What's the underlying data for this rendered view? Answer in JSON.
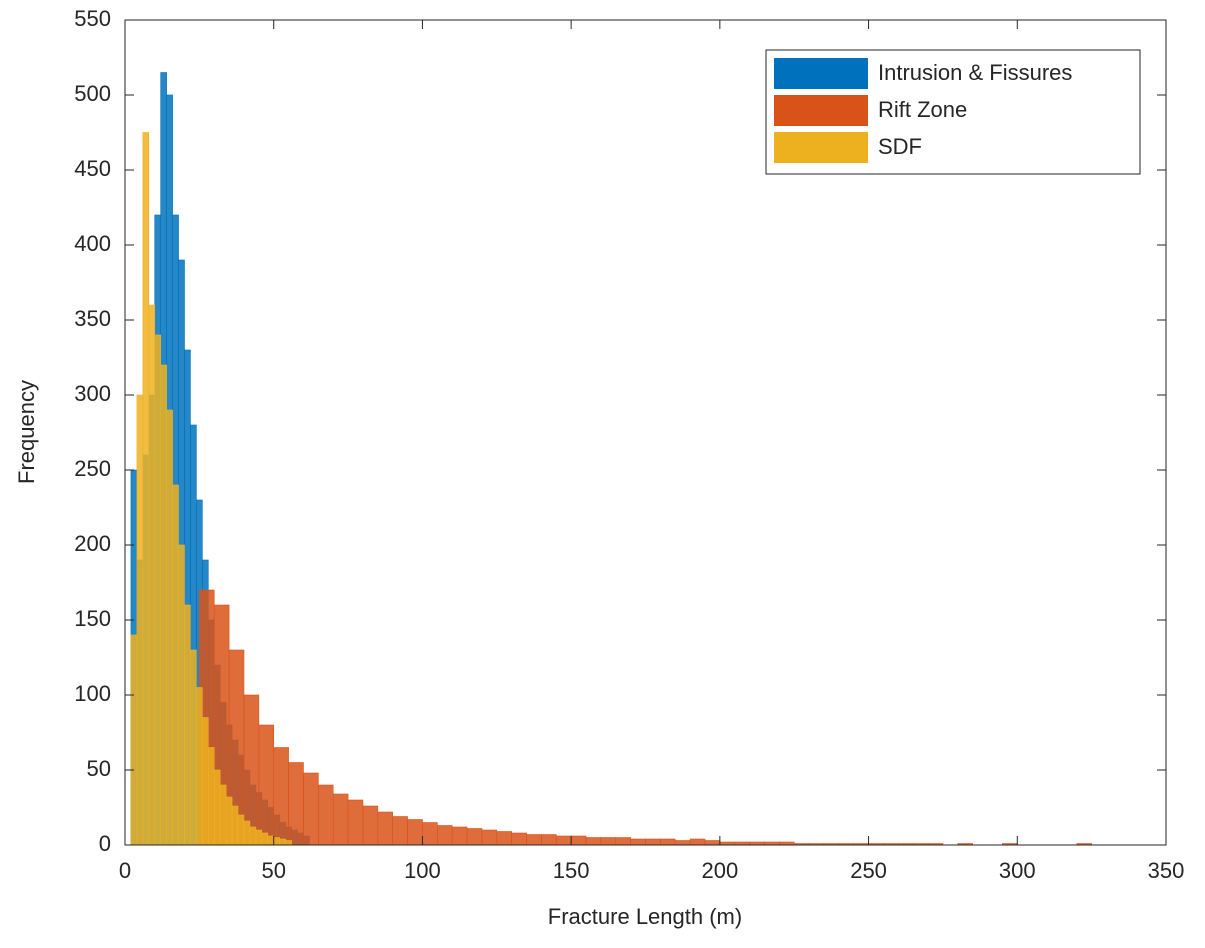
{
  "chart_data": {
    "type": "histogram",
    "xlabel": "Fracture Length (m)",
    "ylabel": "Frequency",
    "xlim": [
      0,
      350
    ],
    "xticks": [
      0,
      50,
      100,
      150,
      200,
      250,
      300,
      350
    ],
    "ylim": [
      0,
      550
    ],
    "yticks": [
      0,
      50,
      100,
      150,
      200,
      250,
      300,
      350,
      400,
      450,
      500,
      550
    ],
    "legend": "upper right",
    "series": [
      {
        "name": "Intrusion & Fissures",
        "color": "#0072bd",
        "bins": [
          2,
          4,
          6,
          8,
          10,
          12,
          14,
          16,
          18,
          20,
          22,
          24,
          26,
          28,
          30,
          32,
          34,
          36,
          38,
          40,
          42,
          44,
          46,
          48,
          50,
          52,
          54,
          56,
          58,
          60,
          62
        ],
        "values": [
          250,
          190,
          260,
          300,
          420,
          515,
          500,
          420,
          390,
          330,
          280,
          230,
          190,
          150,
          120,
          95,
          80,
          70,
          60,
          50,
          40,
          35,
          30,
          25,
          20,
          15,
          12,
          10,
          8,
          6
        ]
      },
      {
        "name": "Rift Zone",
        "color": "#d95319",
        "bins": [
          25,
          30,
          35,
          40,
          45,
          50,
          55,
          60,
          65,
          70,
          75,
          80,
          85,
          90,
          95,
          100,
          105,
          110,
          115,
          120,
          125,
          130,
          135,
          140,
          145,
          150,
          155,
          160,
          165,
          170,
          175,
          180,
          185,
          190,
          195,
          200,
          205,
          210,
          215,
          220,
          225,
          230,
          235,
          240,
          245,
          250,
          255,
          260,
          265,
          270,
          275,
          280,
          285,
          290,
          295,
          300,
          305,
          310,
          315,
          320,
          325,
          330
        ],
        "values": [
          170,
          160,
          130,
          100,
          80,
          65,
          55,
          48,
          40,
          34,
          30,
          26,
          22,
          19,
          17,
          15,
          13,
          12,
          11,
          10,
          9,
          8,
          7,
          7,
          6,
          6,
          5,
          5,
          5,
          4,
          4,
          4,
          3,
          4,
          3,
          2,
          2,
          2,
          2,
          2,
          1,
          1,
          1,
          1,
          1,
          1,
          1,
          1,
          1,
          1,
          0,
          1,
          0,
          0,
          1,
          0,
          0,
          0,
          0,
          1,
          0
        ]
      },
      {
        "name": "SDF",
        "color": "#edb120",
        "bins": [
          2,
          4,
          6,
          8,
          10,
          12,
          14,
          16,
          18,
          20,
          22,
          24,
          26,
          28,
          30,
          32,
          34,
          36,
          38,
          40,
          42,
          44,
          46,
          48,
          50,
          52,
          54,
          56
        ],
        "values": [
          140,
          300,
          475,
          360,
          340,
          320,
          290,
          240,
          200,
          160,
          130,
          105,
          85,
          65,
          50,
          40,
          32,
          26,
          20,
          16,
          12,
          10,
          8,
          6,
          5,
          4,
          3
        ]
      }
    ]
  }
}
